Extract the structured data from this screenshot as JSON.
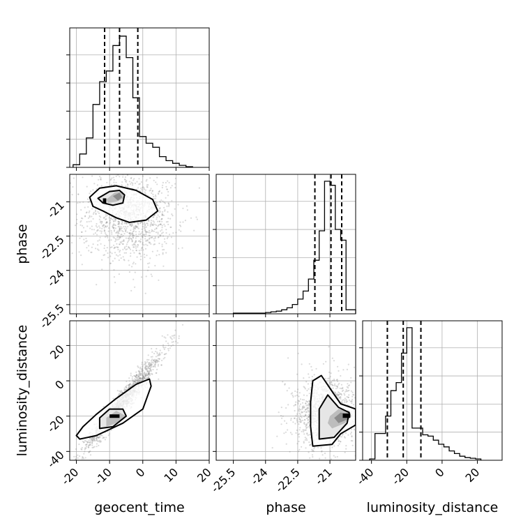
{
  "chart_data": [
    {
      "panel": "geocent_time-hist",
      "type": "histogram",
      "xlim": [
        -22,
        20
      ],
      "ymax": 1.0,
      "bin_edges": [
        -21,
        -19,
        -17,
        -15,
        -13,
        -11,
        -9,
        -7,
        -5,
        -3,
        -1,
        1,
        3,
        5,
        7,
        9,
        11,
        13,
        15
      ],
      "counts": [
        0.02,
        0.1,
        0.22,
        0.47,
        0.64,
        0.72,
        0.91,
        0.98,
        0.82,
        0.52,
        0.23,
        0.18,
        0.15,
        0.08,
        0.05,
        0.03,
        0.015,
        0.005
      ],
      "quantiles": [
        -11.5,
        -7,
        -1.5
      ]
    },
    {
      "panel": "phase-geocent_time",
      "type": "scatter",
      "xlim": [
        -22,
        20
      ],
      "ylim": [
        -25.9,
        -19.8
      ],
      "ylabel": "phase",
      "yticks": [
        -21.0,
        -22.5,
        -24.0,
        -25.5
      ],
      "cloud": {
        "cx": -4,
        "cy": -21.6,
        "sx": 7,
        "sy": 0.9,
        "n": 1300
      },
      "contours": {
        "outer": [
          [
            -16,
            -20.8
          ],
          [
            -13,
            -20.4
          ],
          [
            -8,
            -20.3
          ],
          [
            -2,
            -20.5
          ],
          [
            3,
            -20.9
          ],
          [
            4.5,
            -21.4
          ],
          [
            1,
            -21.8
          ],
          [
            -4,
            -21.9
          ],
          [
            -8,
            -21.7
          ],
          [
            -12,
            -21.4
          ],
          [
            -15,
            -21.2
          ]
        ],
        "inner": [
          [
            -13.5,
            -20.85
          ],
          [
            -10,
            -20.55
          ],
          [
            -7,
            -20.5
          ],
          [
            -5.5,
            -20.7
          ],
          [
            -6,
            -21.05
          ],
          [
            -9,
            -21.15
          ],
          [
            -12,
            -21.05
          ]
        ],
        "fill1": [
          [
            -11,
            -20.9
          ],
          [
            -8.5,
            -20.6
          ],
          [
            -6,
            -20.55
          ],
          [
            -5.8,
            -20.85
          ],
          [
            -8,
            -21.0
          ],
          [
            -10.5,
            -21.05
          ]
        ],
        "fill2": [
          [
            -9,
            -20.75
          ],
          [
            -7,
            -20.6
          ],
          [
            -6.2,
            -20.8
          ],
          [
            -7.5,
            -20.95
          ]
        ],
        "core": [
          [
            -12,
            -20.85
          ],
          [
            -11,
            -20.85
          ],
          [
            -11,
            -21.05
          ],
          [
            -12,
            -21.05
          ]
        ]
      }
    },
    {
      "panel": "phase-hist",
      "type": "histogram",
      "xlim": [
        -26.3,
        -19.8
      ],
      "ymax": 1.0,
      "bin_edges": [
        -25.5,
        -25.25,
        -25.0,
        -24.75,
        -24.5,
        -24.25,
        -24.0,
        -23.75,
        -23.5,
        -23.25,
        -23.0,
        -22.75,
        -22.5,
        -22.25,
        -22.0,
        -21.75,
        -21.5,
        -21.25,
        -21.0,
        -20.75,
        -20.5,
        -20.25,
        -20.0,
        -19.8
      ],
      "counts": [
        0.005,
        0.005,
        0.005,
        0.005,
        0.005,
        0.005,
        0.01,
        0.015,
        0.02,
        0.03,
        0.045,
        0.07,
        0.11,
        0.17,
        0.26,
        0.4,
        0.62,
        0.99,
        0.96,
        0.63,
        0.55,
        0.03,
        0.03
      ],
      "quantiles": [
        -21.7,
        -20.95,
        -20.45
      ]
    },
    {
      "panel": "luminosity_distance-geocent_time",
      "type": "scatter",
      "xlim": [
        -22,
        20
      ],
      "ylim": [
        -45,
        34
      ],
      "ylabel": "luminosity_distance",
      "xlabel": "geocent_time",
      "xticks": [
        -20,
        -10,
        0,
        10,
        20
      ],
      "yticks": [
        20,
        0,
        -20,
        -40
      ],
      "cloud": {
        "slope": 2.3,
        "intercept": -6,
        "sx": 6.5,
        "sy": 3.5,
        "n": 1300
      },
      "contours": {
        "outer": [
          [
            -19,
            -33
          ],
          [
            -14,
            -31
          ],
          [
            -6,
            -24
          ],
          [
            0,
            -16
          ],
          [
            2.5,
            -3
          ],
          [
            2,
            1
          ],
          [
            -2,
            -2
          ],
          [
            -8,
            -10
          ],
          [
            -14,
            -19
          ],
          [
            -18,
            -26
          ],
          [
            -20,
            -31
          ]
        ],
        "inner": [
          [
            -13,
            -27
          ],
          [
            -9,
            -26
          ],
          [
            -5,
            -20
          ],
          [
            -6,
            -16
          ],
          [
            -10,
            -16
          ],
          [
            -13,
            -21
          ]
        ],
        "fill1": [
          [
            -11,
            -26
          ],
          [
            -8,
            -24
          ],
          [
            -5,
            -20
          ],
          [
            -8,
            -17
          ],
          [
            -11,
            -21
          ]
        ],
        "core": [
          [
            -10,
            -21
          ],
          [
            -7,
            -21
          ],
          [
            -7,
            -19
          ],
          [
            -10,
            -19
          ]
        ]
      }
    },
    {
      "panel": "luminosity_distance-phase",
      "type": "scatter",
      "xlim": [
        -26.3,
        -19.8
      ],
      "ylim": [
        -45,
        34
      ],
      "xlabel": "phase",
      "xticks": [
        -25.5,
        -24.0,
        -22.5,
        -21.0
      ],
      "cloud": {
        "cx": -21.2,
        "cy": -18,
        "sx": 0.7,
        "sy": 9,
        "n": 1300
      },
      "contours": {
        "outer": [
          [
            -21.8,
            -37
          ],
          [
            -20.9,
            -36
          ],
          [
            -20.5,
            -30
          ],
          [
            -19.8,
            -25
          ],
          [
            -19.8,
            -16
          ],
          [
            -20.5,
            -13
          ],
          [
            -20.9,
            -6
          ],
          [
            -21.4,
            3
          ],
          [
            -21.8,
            0
          ],
          [
            -21.9,
            -12
          ],
          [
            -21.9,
            -26
          ]
        ],
        "inner": [
          [
            -21.5,
            -33
          ],
          [
            -20.8,
            -32
          ],
          [
            -20.2,
            -24
          ],
          [
            -20.1,
            -18
          ],
          [
            -20.6,
            -15
          ],
          [
            -21.1,
            -8
          ],
          [
            -21.5,
            -16
          ],
          [
            -21.5,
            -26
          ]
        ],
        "fill1": [
          [
            -20.9,
            -27
          ],
          [
            -20.3,
            -24
          ],
          [
            -20.0,
            -20
          ],
          [
            -20.1,
            -17
          ],
          [
            -20.6,
            -16
          ],
          [
            -21.0,
            -20
          ],
          [
            -21.1,
            -24
          ]
        ],
        "fill2": [
          [
            -20.6,
            -24
          ],
          [
            -20.2,
            -22
          ],
          [
            -20.1,
            -19
          ],
          [
            -20.5,
            -18
          ],
          [
            -20.8,
            -21
          ]
        ],
        "core": [
          [
            -20.4,
            -21
          ],
          [
            -20.05,
            -21
          ],
          [
            -20.05,
            -18.5
          ],
          [
            -20.4,
            -18.5
          ]
        ]
      }
    },
    {
      "panel": "luminosity_distance-hist",
      "type": "histogram",
      "xlim": [
        -45,
        34
      ],
      "ymax": 1.0,
      "xlabel": "luminosity_distance",
      "xticks": [
        -40,
        -20,
        0,
        20
      ],
      "bin_edges": [
        -41,
        -38,
        -35,
        -32,
        -29,
        -26,
        -23,
        -20,
        -17,
        -14,
        -11,
        -8,
        -5,
        -2,
        1,
        4,
        7,
        10,
        13,
        16,
        19,
        22
      ],
      "counts": [
        0.01,
        0.2,
        0.2,
        0.33,
        0.52,
        0.58,
        0.8,
        0.99,
        0.24,
        0.24,
        0.19,
        0.18,
        0.15,
        0.12,
        0.1,
        0.07,
        0.05,
        0.03,
        0.02,
        0.015,
        0.01
      ],
      "quantiles": [
        -31,
        -22,
        -12
      ]
    }
  ]
}
